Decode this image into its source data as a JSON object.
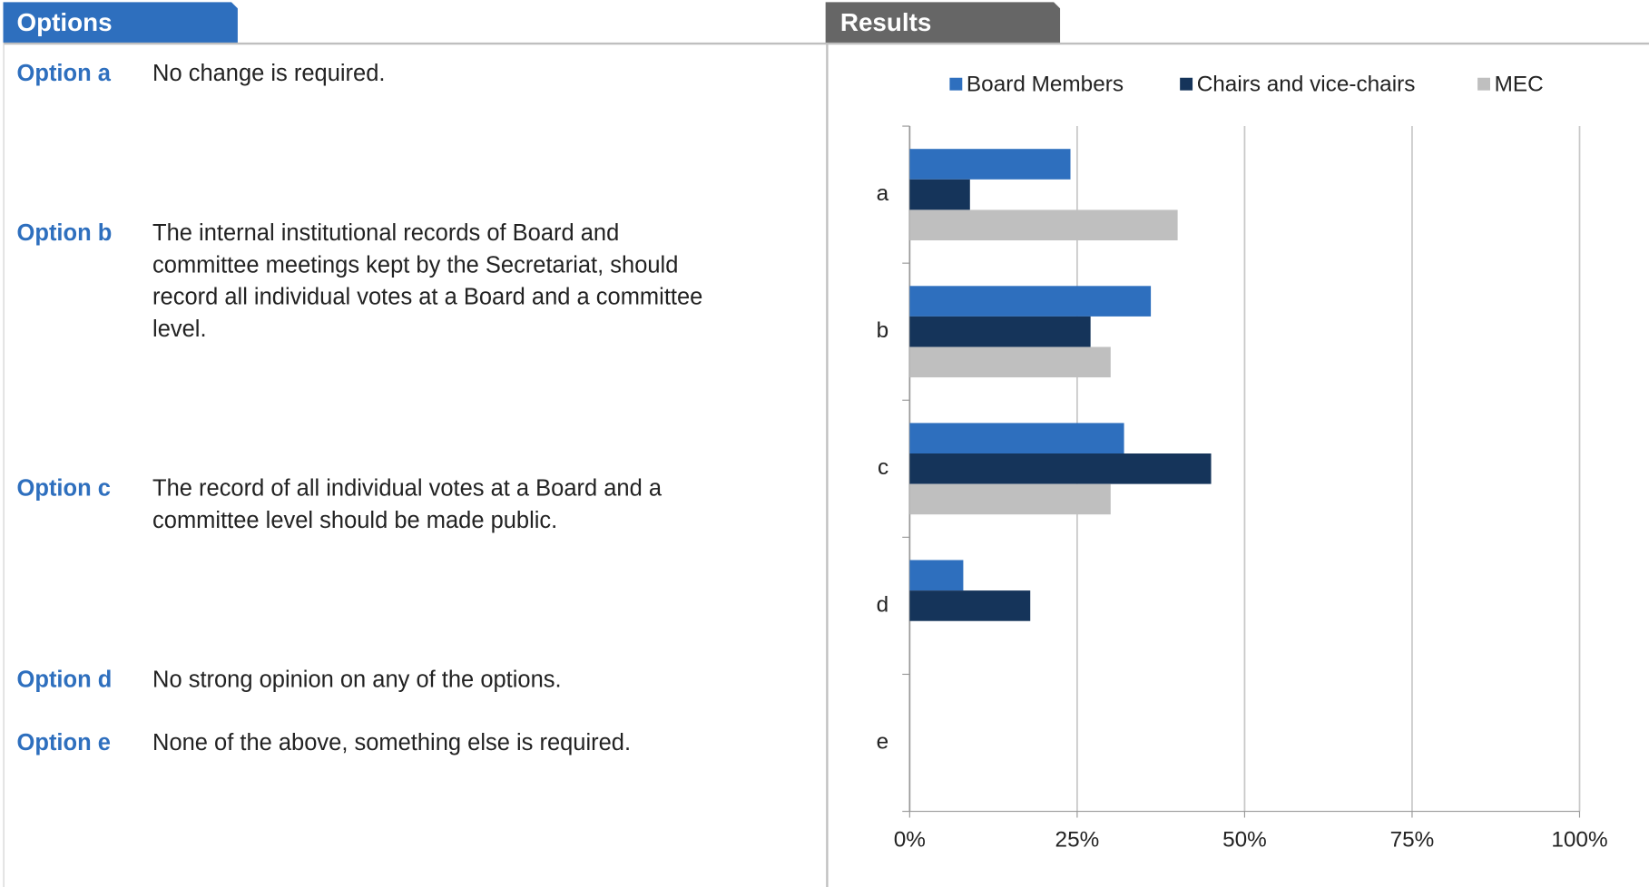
{
  "options_panel": {
    "title": "Options",
    "options": [
      {
        "label": "Option a",
        "lines": [
          "No change is required."
        ]
      },
      {
        "label": "Option b",
        "lines": [
          "The internal institutional records of Board and",
          "committee meetings kept by the Secretariat, should",
          "record all individual votes at a Board and a committee",
          "level."
        ]
      },
      {
        "label": "Option c",
        "lines": [
          "The record of all individual votes at a Board and a",
          "committee level should be made public."
        ]
      },
      {
        "label": "Option d",
        "lines": [
          "No strong opinion on any of the options."
        ]
      },
      {
        "label": "Option e",
        "lines": [
          "None of the above, something else is required."
        ]
      }
    ]
  },
  "results_panel": {
    "title": "Results"
  },
  "chart_data": {
    "type": "hbar",
    "categories": [
      "a",
      "b",
      "c",
      "d",
      "e"
    ],
    "series": [
      {
        "name": "Board Members",
        "color": "#2e6fbe",
        "values": [
          24,
          36,
          32,
          8,
          0
        ]
      },
      {
        "name": "Chairs and vice-chairs",
        "color": "#15345a",
        "values": [
          9,
          27,
          45,
          18,
          0
        ]
      },
      {
        "name": "MEC",
        "color": "#bfbfbf",
        "values": [
          40,
          30,
          30,
          0,
          0
        ]
      }
    ],
    "xlim": [
      0,
      100
    ],
    "xticks": [
      {
        "value": 0,
        "label": "0%"
      },
      {
        "value": 25,
        "label": "25%"
      },
      {
        "value": 50,
        "label": "50%"
      },
      {
        "value": 75,
        "label": "75%"
      },
      {
        "value": 100,
        "label": "100%"
      }
    ],
    "grid": true,
    "legend": "top"
  }
}
